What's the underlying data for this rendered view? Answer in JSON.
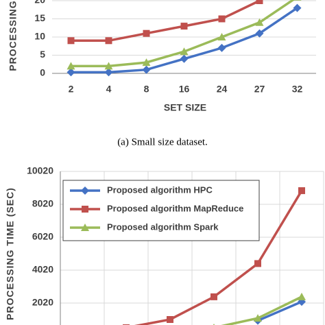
{
  "chart_data": [
    {
      "type": "line",
      "y_label": "PROCESSING",
      "x_label": "SET SIZE",
      "categories": [
        "2",
        "4",
        "8",
        "16",
        "24",
        "27",
        "32"
      ],
      "ylim": [
        0,
        20
      ],
      "yticks": [
        0,
        5,
        10,
        15,
        20
      ],
      "grid": true,
      "legend": false,
      "series": [
        {
          "name": "Proposed algorithm HPC",
          "color": "#4472c4",
          "marker": "diamond",
          "values": [
            0.3,
            0.3,
            1,
            4,
            7,
            11,
            18
          ]
        },
        {
          "name": "Proposed algorithm MapReduce",
          "color": "#c0504d",
          "marker": "square",
          "values": [
            9,
            9,
            11,
            13,
            15,
            20,
            null
          ]
        },
        {
          "name": "Proposed algorithm Spark",
          "color": "#9bbb59",
          "marker": "triangle",
          "values": [
            2,
            2,
            3,
            6,
            10,
            14,
            21
          ]
        }
      ]
    },
    {
      "type": "line",
      "y_label": "PROCESSING  TIME (SEC)",
      "categories": [
        null,
        null,
        null,
        null,
        null,
        null
      ],
      "ylim": [
        20,
        10020
      ],
      "yticks": [
        2020,
        4020,
        6020,
        8020,
        10020
      ],
      "grid": true,
      "legend": true,
      "series": [
        {
          "name": "Proposed algorithm HPC",
          "color": "#4472c4",
          "marker": "diamond",
          "values": [
            null,
            null,
            null,
            null,
            950,
            2100
          ]
        },
        {
          "name": "Proposed algorithm MapReduce",
          "color": "#c0504d",
          "marker": "square",
          "values": [
            null,
            520,
            1020,
            2400,
            4420,
            8850
          ]
        },
        {
          "name": "Proposed algorithm Spark",
          "color": "#9bbb59",
          "marker": "triangle",
          "values": [
            null,
            null,
            null,
            520,
            1100,
            2400
          ]
        }
      ]
    }
  ],
  "caption": "(a) Small size dataset."
}
